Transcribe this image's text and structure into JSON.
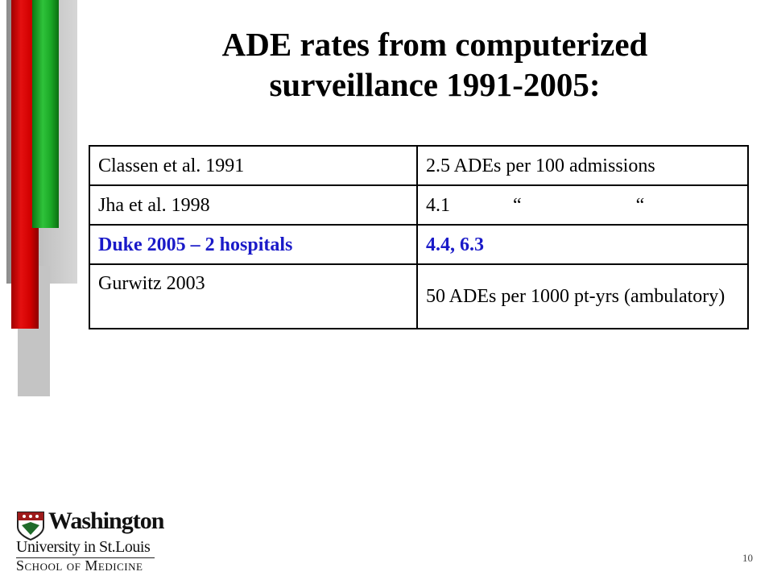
{
  "slide": {
    "title_line1": "ADE rates from computerized",
    "title_line2": "surveillance 1991-2005:",
    "page_number": "10"
  },
  "table": {
    "rows": [
      {
        "study": "Classen et al. 1991",
        "rate": "2.5 ADEs per 100 admissions"
      },
      {
        "study": "Jha et al. 1998",
        "rate_value": "4.1",
        "ditto_mark_1": "“",
        "ditto_mark_2": "“"
      },
      {
        "study": "Duke 2005 – 2 hospitals",
        "rate": "4.4, 6.3",
        "highlight_color": "#1a1ac8"
      },
      {
        "study": "Gurwitz 2003",
        "rate": "50 ADEs per 1000 pt-yrs (ambulatory)"
      }
    ]
  },
  "logo": {
    "line1": "Washington",
    "line2": "University in St.Louis",
    "line3": "School of Medicine",
    "icon": "shield-crest-icon"
  },
  "colors": {
    "bar_red": "#d10000",
    "bar_green": "#1aa826",
    "bar_gray": "#c4c4c4",
    "highlight": "#1a1ac8"
  }
}
